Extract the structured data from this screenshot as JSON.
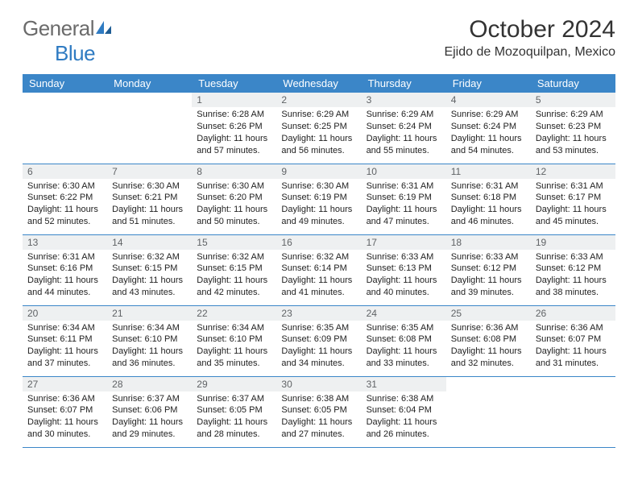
{
  "logo": {
    "general": "General",
    "blue": "Blue"
  },
  "header": {
    "title": "October 2024",
    "location": "Ejido de Mozoquilpan, Mexico"
  },
  "colors": {
    "header_bg": "#3b86c8",
    "header_text": "#ffffff",
    "daynum_bg": "#eef0f1",
    "daynum_text": "#606366",
    "row_border": "#3b86c8",
    "logo_gray": "#6b6b6b",
    "logo_blue": "#2f7bc2"
  },
  "weekdays": [
    "Sunday",
    "Monday",
    "Tuesday",
    "Wednesday",
    "Thursday",
    "Friday",
    "Saturday"
  ],
  "weeks": [
    [
      {
        "empty": true
      },
      {
        "empty": true
      },
      {
        "num": "1",
        "sunrise": "Sunrise: 6:28 AM",
        "sunset": "Sunset: 6:26 PM",
        "day1": "Daylight: 11 hours",
        "day2": "and 57 minutes."
      },
      {
        "num": "2",
        "sunrise": "Sunrise: 6:29 AM",
        "sunset": "Sunset: 6:25 PM",
        "day1": "Daylight: 11 hours",
        "day2": "and 56 minutes."
      },
      {
        "num": "3",
        "sunrise": "Sunrise: 6:29 AM",
        "sunset": "Sunset: 6:24 PM",
        "day1": "Daylight: 11 hours",
        "day2": "and 55 minutes."
      },
      {
        "num": "4",
        "sunrise": "Sunrise: 6:29 AM",
        "sunset": "Sunset: 6:24 PM",
        "day1": "Daylight: 11 hours",
        "day2": "and 54 minutes."
      },
      {
        "num": "5",
        "sunrise": "Sunrise: 6:29 AM",
        "sunset": "Sunset: 6:23 PM",
        "day1": "Daylight: 11 hours",
        "day2": "and 53 minutes."
      }
    ],
    [
      {
        "num": "6",
        "sunrise": "Sunrise: 6:30 AM",
        "sunset": "Sunset: 6:22 PM",
        "day1": "Daylight: 11 hours",
        "day2": "and 52 minutes."
      },
      {
        "num": "7",
        "sunrise": "Sunrise: 6:30 AM",
        "sunset": "Sunset: 6:21 PM",
        "day1": "Daylight: 11 hours",
        "day2": "and 51 minutes."
      },
      {
        "num": "8",
        "sunrise": "Sunrise: 6:30 AM",
        "sunset": "Sunset: 6:20 PM",
        "day1": "Daylight: 11 hours",
        "day2": "and 50 minutes."
      },
      {
        "num": "9",
        "sunrise": "Sunrise: 6:30 AM",
        "sunset": "Sunset: 6:19 PM",
        "day1": "Daylight: 11 hours",
        "day2": "and 49 minutes."
      },
      {
        "num": "10",
        "sunrise": "Sunrise: 6:31 AM",
        "sunset": "Sunset: 6:19 PM",
        "day1": "Daylight: 11 hours",
        "day2": "and 47 minutes."
      },
      {
        "num": "11",
        "sunrise": "Sunrise: 6:31 AM",
        "sunset": "Sunset: 6:18 PM",
        "day1": "Daylight: 11 hours",
        "day2": "and 46 minutes."
      },
      {
        "num": "12",
        "sunrise": "Sunrise: 6:31 AM",
        "sunset": "Sunset: 6:17 PM",
        "day1": "Daylight: 11 hours",
        "day2": "and 45 minutes."
      }
    ],
    [
      {
        "num": "13",
        "sunrise": "Sunrise: 6:31 AM",
        "sunset": "Sunset: 6:16 PM",
        "day1": "Daylight: 11 hours",
        "day2": "and 44 minutes."
      },
      {
        "num": "14",
        "sunrise": "Sunrise: 6:32 AM",
        "sunset": "Sunset: 6:15 PM",
        "day1": "Daylight: 11 hours",
        "day2": "and 43 minutes."
      },
      {
        "num": "15",
        "sunrise": "Sunrise: 6:32 AM",
        "sunset": "Sunset: 6:15 PM",
        "day1": "Daylight: 11 hours",
        "day2": "and 42 minutes."
      },
      {
        "num": "16",
        "sunrise": "Sunrise: 6:32 AM",
        "sunset": "Sunset: 6:14 PM",
        "day1": "Daylight: 11 hours",
        "day2": "and 41 minutes."
      },
      {
        "num": "17",
        "sunrise": "Sunrise: 6:33 AM",
        "sunset": "Sunset: 6:13 PM",
        "day1": "Daylight: 11 hours",
        "day2": "and 40 minutes."
      },
      {
        "num": "18",
        "sunrise": "Sunrise: 6:33 AM",
        "sunset": "Sunset: 6:12 PM",
        "day1": "Daylight: 11 hours",
        "day2": "and 39 minutes."
      },
      {
        "num": "19",
        "sunrise": "Sunrise: 6:33 AM",
        "sunset": "Sunset: 6:12 PM",
        "day1": "Daylight: 11 hours",
        "day2": "and 38 minutes."
      }
    ],
    [
      {
        "num": "20",
        "sunrise": "Sunrise: 6:34 AM",
        "sunset": "Sunset: 6:11 PM",
        "day1": "Daylight: 11 hours",
        "day2": "and 37 minutes."
      },
      {
        "num": "21",
        "sunrise": "Sunrise: 6:34 AM",
        "sunset": "Sunset: 6:10 PM",
        "day1": "Daylight: 11 hours",
        "day2": "and 36 minutes."
      },
      {
        "num": "22",
        "sunrise": "Sunrise: 6:34 AM",
        "sunset": "Sunset: 6:10 PM",
        "day1": "Daylight: 11 hours",
        "day2": "and 35 minutes."
      },
      {
        "num": "23",
        "sunrise": "Sunrise: 6:35 AM",
        "sunset": "Sunset: 6:09 PM",
        "day1": "Daylight: 11 hours",
        "day2": "and 34 minutes."
      },
      {
        "num": "24",
        "sunrise": "Sunrise: 6:35 AM",
        "sunset": "Sunset: 6:08 PM",
        "day1": "Daylight: 11 hours",
        "day2": "and 33 minutes."
      },
      {
        "num": "25",
        "sunrise": "Sunrise: 6:36 AM",
        "sunset": "Sunset: 6:08 PM",
        "day1": "Daylight: 11 hours",
        "day2": "and 32 minutes."
      },
      {
        "num": "26",
        "sunrise": "Sunrise: 6:36 AM",
        "sunset": "Sunset: 6:07 PM",
        "day1": "Daylight: 11 hours",
        "day2": "and 31 minutes."
      }
    ],
    [
      {
        "num": "27",
        "sunrise": "Sunrise: 6:36 AM",
        "sunset": "Sunset: 6:07 PM",
        "day1": "Daylight: 11 hours",
        "day2": "and 30 minutes."
      },
      {
        "num": "28",
        "sunrise": "Sunrise: 6:37 AM",
        "sunset": "Sunset: 6:06 PM",
        "day1": "Daylight: 11 hours",
        "day2": "and 29 minutes."
      },
      {
        "num": "29",
        "sunrise": "Sunrise: 6:37 AM",
        "sunset": "Sunset: 6:05 PM",
        "day1": "Daylight: 11 hours",
        "day2": "and 28 minutes."
      },
      {
        "num": "30",
        "sunrise": "Sunrise: 6:38 AM",
        "sunset": "Sunset: 6:05 PM",
        "day1": "Daylight: 11 hours",
        "day2": "and 27 minutes."
      },
      {
        "num": "31",
        "sunrise": "Sunrise: 6:38 AM",
        "sunset": "Sunset: 6:04 PM",
        "day1": "Daylight: 11 hours",
        "day2": "and 26 minutes."
      },
      {
        "empty": true
      },
      {
        "empty": true
      }
    ]
  ]
}
